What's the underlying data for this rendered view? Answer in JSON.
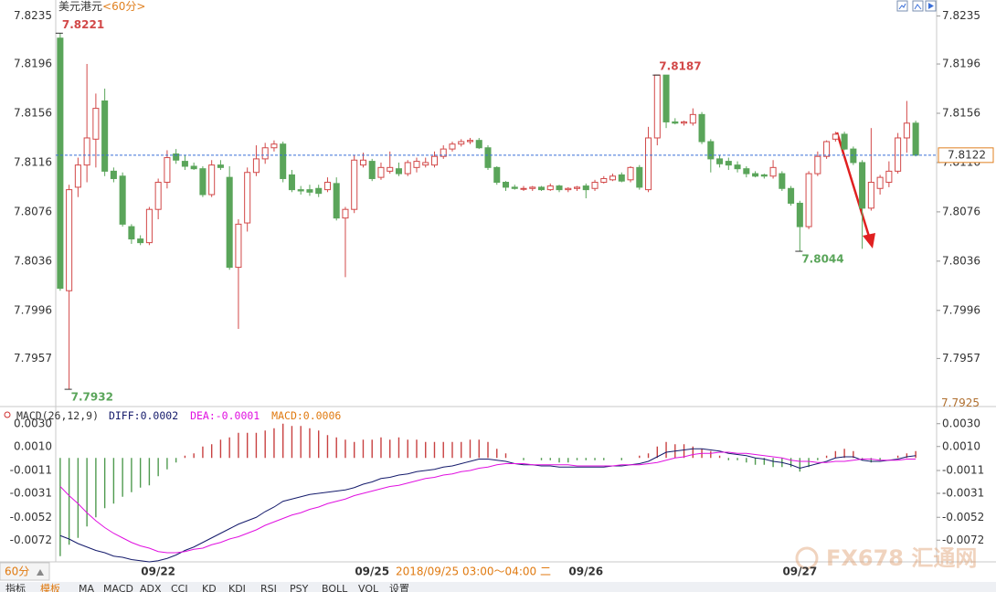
{
  "header": {
    "title": "美元港元",
    "period": "<60分>"
  },
  "chart_data": [
    {
      "type": "candlestick",
      "categories": [
        null,
        null,
        null,
        null,
        null,
        null,
        null,
        null,
        null,
        null,
        null,
        "09/22",
        null,
        null,
        null,
        null,
        null,
        null,
        null,
        null,
        null,
        null,
        null,
        null,
        null,
        null,
        null,
        null,
        null,
        null,
        null,
        null,
        null,
        null,
        null,
        "09/25",
        null,
        null,
        null,
        null,
        null,
        null,
        null,
        null,
        null,
        null,
        null,
        null,
        null,
        null,
        null,
        null,
        null,
        null,
        null,
        null,
        null,
        null,
        null,
        "09/26",
        null,
        null,
        null,
        null,
        null,
        null,
        null,
        null,
        null,
        null,
        null,
        null,
        null,
        null,
        null,
        null,
        null,
        null,
        null,
        null,
        null,
        null,
        null,
        "09/27",
        null,
        null,
        null,
        null,
        null,
        null,
        null,
        null,
        null,
        null,
        null,
        null,
        null
      ],
      "open": [
        7.8217,
        7.8012,
        7.8096,
        7.8114,
        7.8135,
        7.8166,
        7.8109,
        7.8105,
        7.8064,
        7.8054,
        7.8051,
        7.8078,
        7.81,
        7.8123,
        7.8117,
        7.8113,
        7.8111,
        7.809,
        7.8114,
        7.8104,
        7.8031,
        7.8067,
        7.8108,
        7.8119,
        7.8128,
        7.8131,
        7.8106,
        7.8094,
        7.8094,
        7.8095,
        7.8094,
        7.8099,
        7.8071,
        7.8078,
        7.8114,
        7.8117,
        7.8104,
        7.8109,
        7.8111,
        7.8107,
        7.8112,
        7.8114,
        7.8114,
        7.8121,
        7.8127,
        7.8131,
        7.8133,
        7.8134,
        7.8128,
        7.8112,
        7.81,
        7.8096,
        7.8095,
        7.8095,
        7.8096,
        7.8094,
        7.8097,
        7.8094,
        7.8095,
        7.8097,
        7.8095,
        7.81,
        7.8102,
        7.8106,
        7.8102,
        7.8112,
        7.8094,
        7.8136,
        7.8187,
        7.8149,
        7.8148,
        7.8148,
        7.8155,
        7.8133,
        7.8119,
        7.8117,
        7.8114,
        7.8111,
        7.8107,
        7.8106,
        7.8105,
        7.8107,
        7.8095,
        7.8083,
        7.8064,
        7.8107,
        7.8121,
        7.8135,
        7.8139,
        7.8127,
        7.8116,
        7.8079,
        7.8095,
        7.81,
        7.8109,
        7.8136,
        7.8148
      ],
      "high": [
        7.8221,
        7.8098,
        7.812,
        7.8196,
        7.8172,
        7.8176,
        7.8112,
        7.8108,
        7.8066,
        7.8057,
        7.808,
        7.8103,
        7.8126,
        7.8127,
        7.8122,
        7.8116,
        7.8113,
        7.8118,
        7.8118,
        7.8113,
        7.807,
        7.8112,
        7.813,
        7.8132,
        7.8134,
        7.8133,
        7.811,
        7.8097,
        7.8098,
        7.8098,
        7.8104,
        7.8104,
        7.808,
        7.8122,
        7.8124,
        7.8119,
        7.8116,
        7.8125,
        7.8116,
        7.8118,
        7.812,
        7.812,
        7.8125,
        7.813,
        7.8133,
        7.8135,
        7.8136,
        7.8136,
        7.813,
        7.8113,
        7.8101,
        7.8098,
        7.8097,
        7.8097,
        7.8097,
        7.8099,
        7.8098,
        7.8096,
        7.8097,
        7.8099,
        7.8102,
        7.8105,
        7.8107,
        7.8108,
        7.8113,
        7.8114,
        7.8145,
        7.8187,
        7.8187,
        7.8152,
        7.815,
        7.816,
        7.8157,
        7.8135,
        7.8122,
        7.812,
        7.8117,
        7.8113,
        7.8109,
        7.8107,
        7.8118,
        7.8109,
        7.8097,
        7.8085,
        7.8109,
        7.8125,
        7.8134,
        7.8141,
        7.8141,
        7.8129,
        7.8118,
        7.8144,
        7.8106,
        7.8117,
        7.814,
        7.8166,
        7.815
      ],
      "low": [
        7.8012,
        7.7932,
        7.8088,
        7.81,
        7.8112,
        7.8105,
        7.81,
        7.8064,
        7.805,
        7.8049,
        7.8049,
        7.807,
        7.8095,
        7.8115,
        7.811,
        7.811,
        7.8088,
        7.8088,
        7.811,
        7.8029,
        7.7981,
        7.806,
        7.8105,
        7.8115,
        7.8125,
        7.81,
        7.8092,
        7.809,
        7.8089,
        7.8088,
        7.8092,
        7.8069,
        7.8023,
        7.8075,
        7.8112,
        7.8101,
        7.8102,
        7.8107,
        7.8105,
        7.8105,
        7.8108,
        7.8112,
        7.8112,
        7.8119,
        7.8125,
        7.8129,
        7.8131,
        7.8127,
        7.811,
        7.8098,
        7.8093,
        7.8094,
        7.8093,
        7.8093,
        7.8093,
        7.8093,
        7.8092,
        7.8092,
        7.8093,
        7.8087,
        7.8093,
        7.8099,
        7.8101,
        7.81,
        7.81,
        7.8094,
        7.8092,
        7.813,
        7.8144,
        7.8147,
        7.8146,
        7.8146,
        7.8131,
        7.8108,
        7.8112,
        7.811,
        7.8108,
        7.8104,
        7.8104,
        7.8103,
        7.8103,
        7.8093,
        7.8081,
        7.8044,
        7.8062,
        7.8105,
        7.8119,
        7.8133,
        7.8126,
        7.8114,
        7.8046,
        7.8077,
        7.809,
        7.8096,
        7.8107,
        7.8124,
        7.8121
      ],
      "close": [
        7.8014,
        7.8094,
        7.8114,
        7.8136,
        7.816,
        7.8109,
        7.8103,
        7.8066,
        7.8054,
        7.8051,
        7.8078,
        7.81,
        7.812,
        7.8118,
        7.8113,
        7.8111,
        7.809,
        7.8114,
        7.8112,
        7.8031,
        7.8066,
        7.8108,
        7.8119,
        7.8128,
        7.8131,
        7.8103,
        7.8094,
        7.8093,
        7.8092,
        7.8091,
        7.81,
        7.8071,
        7.8078,
        7.8118,
        7.8118,
        7.8103,
        7.8112,
        7.8112,
        7.8107,
        7.8116,
        7.8117,
        7.8116,
        7.8121,
        7.8127,
        7.8131,
        7.8133,
        7.8134,
        7.8128,
        7.8112,
        7.81,
        7.8096,
        7.8095,
        7.8095,
        7.8096,
        7.8094,
        7.8097,
        7.8094,
        7.8095,
        7.8096,
        7.8094,
        7.81,
        7.8103,
        7.8105,
        7.8101,
        7.8112,
        7.8096,
        7.8136,
        7.8187,
        7.8149,
        7.8148,
        7.8149,
        7.8155,
        7.8133,
        7.8119,
        7.8115,
        7.8114,
        7.8111,
        7.8107,
        7.8105,
        7.8105,
        7.8112,
        7.8095,
        7.8083,
        7.8064,
        7.8107,
        7.8121,
        7.8133,
        7.8139,
        7.8127,
        7.8116,
        7.8079,
        7.81,
        7.8104,
        7.8109,
        7.8136,
        7.8148,
        7.8122
      ],
      "up_color": "#d24848",
      "down_color": "#5aa55a",
      "ylim": [
        7.7918,
        7.8242
      ],
      "yticks": [
        7.8235,
        7.8196,
        7.8156,
        7.8116,
        7.8076,
        7.8036,
        7.7996,
        7.7957
      ],
      "extremes": [
        7.8221,
        7.8187,
        7.8044,
        7.7932
      ],
      "last_price": 7.8122,
      "last_price_color": "#3a6fd8",
      "cursor_value": 7.7925,
      "cursor_label": "2018/09/25 03:00～04:00 二"
    },
    {
      "type": "macd",
      "title": "MACD(26,12,9)",
      "series": [
        {
          "name": "DIFF:0.0002",
          "color": "#141a6b",
          "values": [
            -0.0068,
            -0.0071,
            -0.0075,
            -0.0078,
            -0.0081,
            -0.0083,
            -0.0086,
            -0.0087,
            -0.0089,
            -0.009,
            -0.0091,
            -0.009,
            -0.0088,
            -0.0085,
            -0.0081,
            -0.0078,
            -0.0074,
            -0.007,
            -0.0066,
            -0.0062,
            -0.0058,
            -0.0055,
            -0.0052,
            -0.0047,
            -0.0043,
            -0.0038,
            -0.0036,
            -0.0034,
            -0.0032,
            -0.0031,
            -0.003,
            -0.0029,
            -0.0028,
            -0.0026,
            -0.0023,
            -0.0021,
            -0.0018,
            -0.0017,
            -0.0015,
            -0.0014,
            -0.0012,
            -0.0011,
            -0.001,
            -0.0008,
            -0.0007,
            -0.0005,
            -0.0003,
            -0.0001,
            -0.0001,
            -0.0002,
            -0.0003,
            -0.0005,
            -0.0006,
            -0.0006,
            -0.0007,
            -0.0007,
            -0.0008,
            -0.0008,
            -0.0008,
            -0.0008,
            -0.0008,
            -0.0008,
            -0.0007,
            -0.0007,
            -0.0006,
            -0.0005,
            -0.0003,
            0.0001,
            0.0005,
            0.0006,
            0.0007,
            0.0008,
            0.0008,
            0.0007,
            0.0006,
            0.0004,
            0.0003,
            0.0002,
            0,
            -0.0001,
            -0.0003,
            -0.0004,
            -0.0006,
            -0.0009,
            -0.0007,
            -0.0005,
            -0.0003,
            0,
            0.0001,
            0.0001,
            -0.0002,
            -0.0003,
            -0.0003,
            -0.0002,
            -0.0001,
            0.0001,
            0.0002
          ]
        },
        {
          "name": "DEA:-0.0001",
          "color": "#e010e0",
          "values": [
            -0.0025,
            -0.0033,
            -0.004,
            -0.0048,
            -0.0055,
            -0.0061,
            -0.0066,
            -0.007,
            -0.0074,
            -0.0077,
            -0.0079,
            -0.0082,
            -0.0083,
            -0.0083,
            -0.0082,
            -0.008,
            -0.0079,
            -0.0076,
            -0.0074,
            -0.0071,
            -0.0069,
            -0.0066,
            -0.0063,
            -0.0059,
            -0.0056,
            -0.0053,
            -0.005,
            -0.0048,
            -0.0045,
            -0.0043,
            -0.004,
            -0.0038,
            -0.0036,
            -0.0033,
            -0.0031,
            -0.0029,
            -0.0027,
            -0.0025,
            -0.0024,
            -0.0022,
            -0.002,
            -0.0018,
            -0.0017,
            -0.0015,
            -0.0014,
            -0.0012,
            -0.0011,
            -0.0009,
            -0.0008,
            -0.0006,
            -0.0005,
            -0.0005,
            -0.0005,
            -0.0006,
            -0.0006,
            -0.0006,
            -0.0006,
            -0.0006,
            -0.0007,
            -0.0007,
            -0.0007,
            -0.0007,
            -0.0007,
            -0.0006,
            -0.0006,
            -0.0006,
            -0.0005,
            -0.0004,
            -0.0002,
            0,
            0.0001,
            0.0003,
            0.0004,
            0.0004,
            0.0005,
            0.0005,
            0.0004,
            0.0004,
            0.0003,
            0.0002,
            0.0001,
            0,
            -0.0002,
            -0.0003,
            -0.0003,
            -0.0004,
            -0.0004,
            -0.0003,
            -0.0003,
            -0.0002,
            -0.0001,
            -0.0001,
            -0.0002,
            -0.0002,
            -0.0002,
            -0.0001,
            -0.0001
          ]
        },
        {
          "name": "MACD:0.0006",
          "color": "#e07a10",
          "up_color": "#c84040",
          "down_color": "#4f9a4f",
          "values": [
            -0.0086,
            -0.0076,
            -0.007,
            -0.006,
            -0.0052,
            -0.0044,
            -0.004,
            -0.0034,
            -0.003,
            -0.0026,
            -0.0024,
            -0.0016,
            -0.001,
            -0.0004,
            0.0002,
            0.0004,
            0.001,
            0.0012,
            0.0016,
            0.0018,
            0.0022,
            0.0022,
            0.0022,
            0.0024,
            0.0026,
            0.003,
            0.0028,
            0.0028,
            0.0026,
            0.0024,
            0.002,
            0.0018,
            0.0016,
            0.0014,
            0.0016,
            0.0016,
            0.0018,
            0.0016,
            0.0018,
            0.0016,
            0.0016,
            0.0014,
            0.0014,
            0.0014,
            0.0014,
            0.0014,
            0.0016,
            0.0016,
            0.0014,
            0.0008,
            0.0004,
            0,
            -0.0002,
            0,
            -0.0002,
            -0.0002,
            -0.0004,
            -0.0004,
            -0.0002,
            -0.0002,
            -0.0002,
            -0.0002,
            0,
            -0.0002,
            0,
            0.0002,
            0.0004,
            0.001,
            0.0014,
            0.0012,
            0.0012,
            0.001,
            0.0008,
            0.0006,
            0.0002,
            -0.0002,
            -0.0002,
            -0.0004,
            -0.0006,
            -0.0006,
            -0.0008,
            -0.0008,
            -0.0008,
            -0.0012,
            -0.0008,
            -0.0002,
            0.0002,
            0.0006,
            0.0008,
            0.0006,
            -0.0002,
            -0.0004,
            -0.0002,
            0,
            0.0002,
            0.0004,
            0.0006
          ]
        }
      ],
      "ylim": [
        -0.0095,
        0.0037
      ],
      "yticks": [
        {
          "value": 0.003,
          "label": "0.0030"
        },
        {
          "value": 0.001,
          "label": "0.0010"
        },
        -0.0011,
        -0.0031,
        -0.0052,
        -0.0072
      ]
    }
  ],
  "footer": {
    "period": "60分",
    "tabs": [
      "指标",
      "模板",
      "MA",
      "MACD",
      "ADX",
      "CCI",
      "KD",
      "KDJ",
      "RSI",
      "PSY",
      "BOLL",
      "VOL",
      "设置"
    ]
  },
  "watermark": "FX678 汇通网"
}
